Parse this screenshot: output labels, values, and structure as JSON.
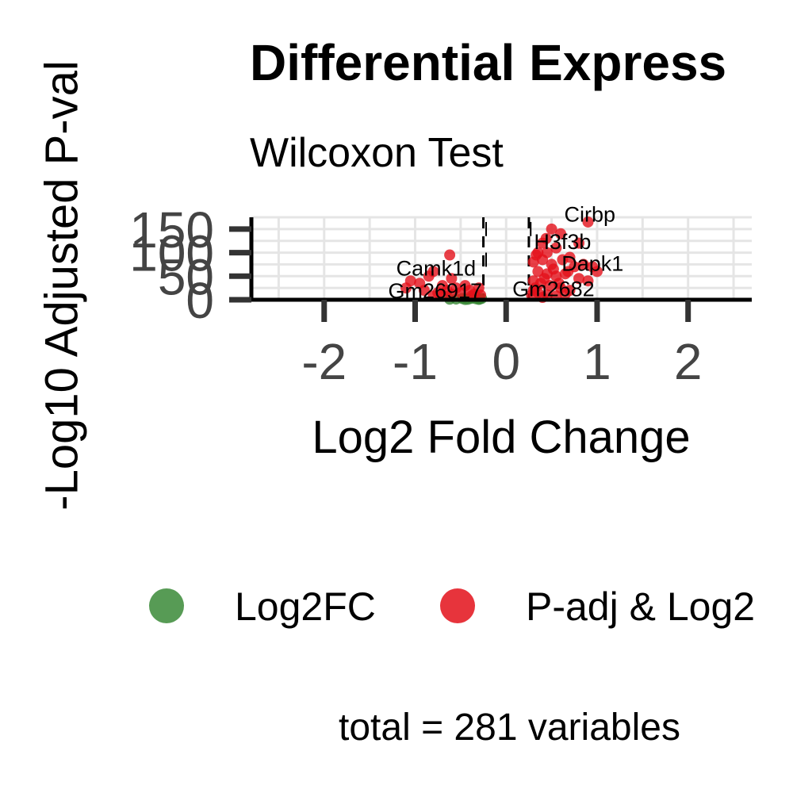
{
  "chart_data": {
    "type": "scatter",
    "title": "Differential Express",
    "subtitle": "Wilcoxon Test",
    "xlabel": "Log2 Fold Change",
    "ylabel": "-Log10 Adjusted P-val",
    "xlim": [
      -2.8,
      2.7
    ],
    "ylim": [
      0,
      175
    ],
    "xticks": [
      -2,
      -1,
      0,
      1,
      2
    ],
    "xtick_labels": [
      "-2",
      "-1",
      "0",
      "1",
      "2"
    ],
    "yticks": [
      0,
      50,
      100,
      150
    ],
    "ytick_labels": [
      "0",
      "50",
      "100",
      "150"
    ],
    "grid": true,
    "thresholds": {
      "x": [
        -0.25,
        0.25
      ],
      "y": 1.3
    },
    "legend_position": "bottom",
    "series": [
      {
        "name": "Log2FC",
        "color": "#3a8a37",
        "points": [
          [
            -0.55,
            1.5
          ],
          [
            -0.48,
            2.5
          ],
          [
            -0.42,
            1.0
          ],
          [
            -0.38,
            3.0
          ],
          [
            -0.33,
            2.0
          ],
          [
            -0.3,
            0.8
          ],
          [
            -0.29,
            1.8
          ],
          [
            -0.27,
            2.6
          ],
          [
            -0.62,
            1.2
          ],
          [
            -0.45,
            0.6
          ]
        ]
      },
      {
        "name": "P-adj & Log2",
        "color": "#e3101a",
        "points": [
          [
            -0.62,
            95
          ],
          [
            -0.8,
            60
          ],
          [
            -0.85,
            50
          ],
          [
            -1.05,
            40
          ],
          [
            -1.1,
            25
          ],
          [
            -0.95,
            35
          ],
          [
            -0.9,
            20
          ],
          [
            -0.7,
            30
          ],
          [
            -0.6,
            45
          ],
          [
            -0.55,
            25
          ],
          [
            -0.5,
            15
          ],
          [
            -0.45,
            30
          ],
          [
            -0.4,
            20
          ],
          [
            -0.35,
            12
          ],
          [
            -0.7,
            10
          ],
          [
            -0.8,
            8
          ],
          [
            -0.3,
            25
          ],
          [
            -0.28,
            10
          ],
          [
            -0.38,
            8
          ],
          [
            -0.6,
            12
          ],
          [
            -0.65,
            20
          ],
          [
            -0.75,
            15
          ],
          [
            0.5,
            150
          ],
          [
            0.6,
            140
          ],
          [
            0.9,
            165
          ],
          [
            0.8,
            120
          ],
          [
            0.4,
            120
          ],
          [
            0.35,
            100
          ],
          [
            0.45,
            100
          ],
          [
            0.55,
            110
          ],
          [
            0.3,
            80
          ],
          [
            0.4,
            85
          ],
          [
            0.5,
            75
          ],
          [
            0.7,
            90
          ],
          [
            0.75,
            70
          ],
          [
            0.85,
            75
          ],
          [
            0.95,
            70
          ],
          [
            1.0,
            60
          ],
          [
            0.35,
            60
          ],
          [
            0.45,
            55
          ],
          [
            0.55,
            50
          ],
          [
            0.65,
            55
          ],
          [
            0.8,
            45
          ],
          [
            0.9,
            40
          ],
          [
            0.3,
            40
          ],
          [
            0.38,
            35
          ],
          [
            0.48,
            30
          ],
          [
            0.6,
            25
          ],
          [
            0.7,
            20
          ],
          [
            0.3,
            20
          ],
          [
            0.35,
            15
          ],
          [
            0.45,
            10
          ],
          [
            0.55,
            8
          ],
          [
            0.65,
            12
          ],
          [
            0.4,
            5
          ],
          [
            0.28,
            10
          ],
          [
            0.32,
            25
          ],
          [
            0.42,
            45
          ],
          [
            0.52,
            65
          ],
          [
            0.62,
            85
          ],
          [
            0.58,
            35
          ],
          [
            0.33,
            95
          ],
          [
            0.44,
            130
          ],
          [
            0.68,
            60
          ]
        ]
      }
    ],
    "labels": [
      {
        "text": "Cirbp",
        "x": 0.92,
        "y": 162
      },
      {
        "text": "H3f3b",
        "x": 0.62,
        "y": 104
      },
      {
        "text": "Dapk1",
        "x": 0.95,
        "y": 58
      },
      {
        "text": "Camk1d",
        "x": -0.77,
        "y": 48
      },
      {
        "text": "Gm26917",
        "x": -0.78,
        "y": 0
      },
      {
        "text": "Gm2682",
        "x": 0.52,
        "y": 4
      }
    ],
    "connectors": [
      {
        "x": -0.22,
        "y1": 135,
        "y2": 165
      },
      {
        "x": -0.22,
        "y1": 70,
        "y2": 100
      },
      {
        "x": 0.27,
        "y1": 135,
        "y2": 165
      }
    ],
    "caption": "total = 281 variables"
  }
}
